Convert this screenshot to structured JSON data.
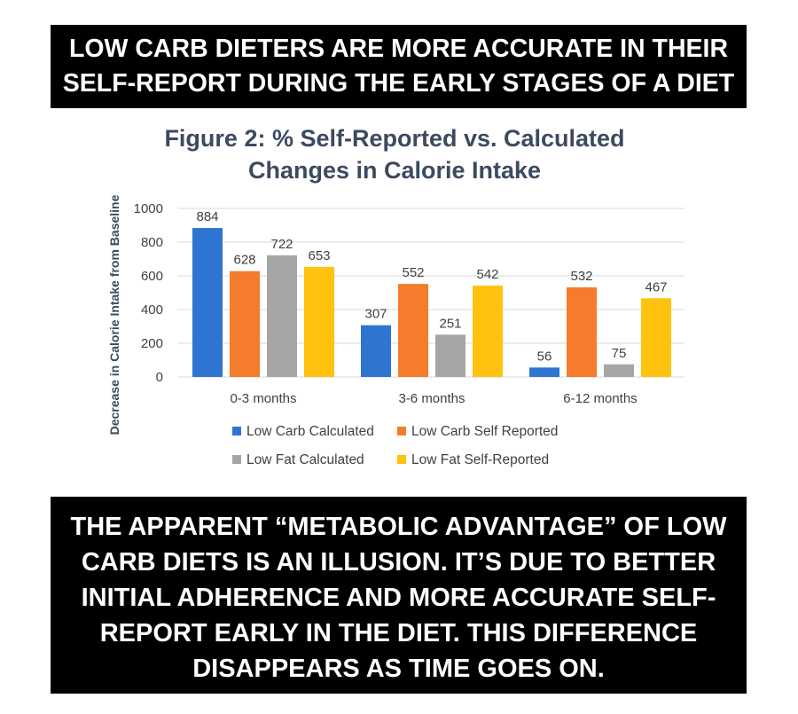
{
  "banners": {
    "top": [
      "LOW CARB DIETERS ARE MORE ACCURATE IN THEIR",
      "SELF-REPORT DURING THE EARLY STAGES OF A DIET"
    ],
    "bottom": [
      "THE APPARENT “METABOLIC ADVANTAGE” OF LOW",
      "CARB DIETS IS AN ILLUSION. IT’S DUE TO BETTER",
      "INITIAL ADHERENCE AND MORE ACCURATE SELF-",
      "REPORT EARLY IN THE DIET. THIS DIFFERENCE",
      "DISAPPEARS AS TIME GOES ON."
    ]
  },
  "chart_data": {
    "type": "bar",
    "title": [
      "Figure 2: % Self-Reported vs. Calculated",
      "Changes in Calorie Intake"
    ],
    "xlabel": "",
    "ylabel": "Decrease in Calorie Intake from Baseline",
    "ylim": [
      0,
      1000
    ],
    "yticks": [
      0,
      200,
      400,
      600,
      800,
      1000
    ],
    "grid": true,
    "legend_position": "bottom",
    "categories": [
      "0-3 months",
      "3-6 months",
      "6-12 months"
    ],
    "series": [
      {
        "name": "Low Carb Calculated",
        "values": [
          884,
          307,
          56
        ],
        "color": "#2e75d2"
      },
      {
        "name": "Low Carb Self Reported",
        "values": [
          628,
          552,
          532
        ],
        "color": "#f57c2c"
      },
      {
        "name": "Low Fat Calculated",
        "values": [
          722,
          251,
          75
        ],
        "color": "#a6a6a6"
      },
      {
        "name": "Low Fat Self-Reported",
        "values": [
          653,
          542,
          467
        ],
        "color": "#ffc20e"
      }
    ],
    "data_labels": true
  }
}
